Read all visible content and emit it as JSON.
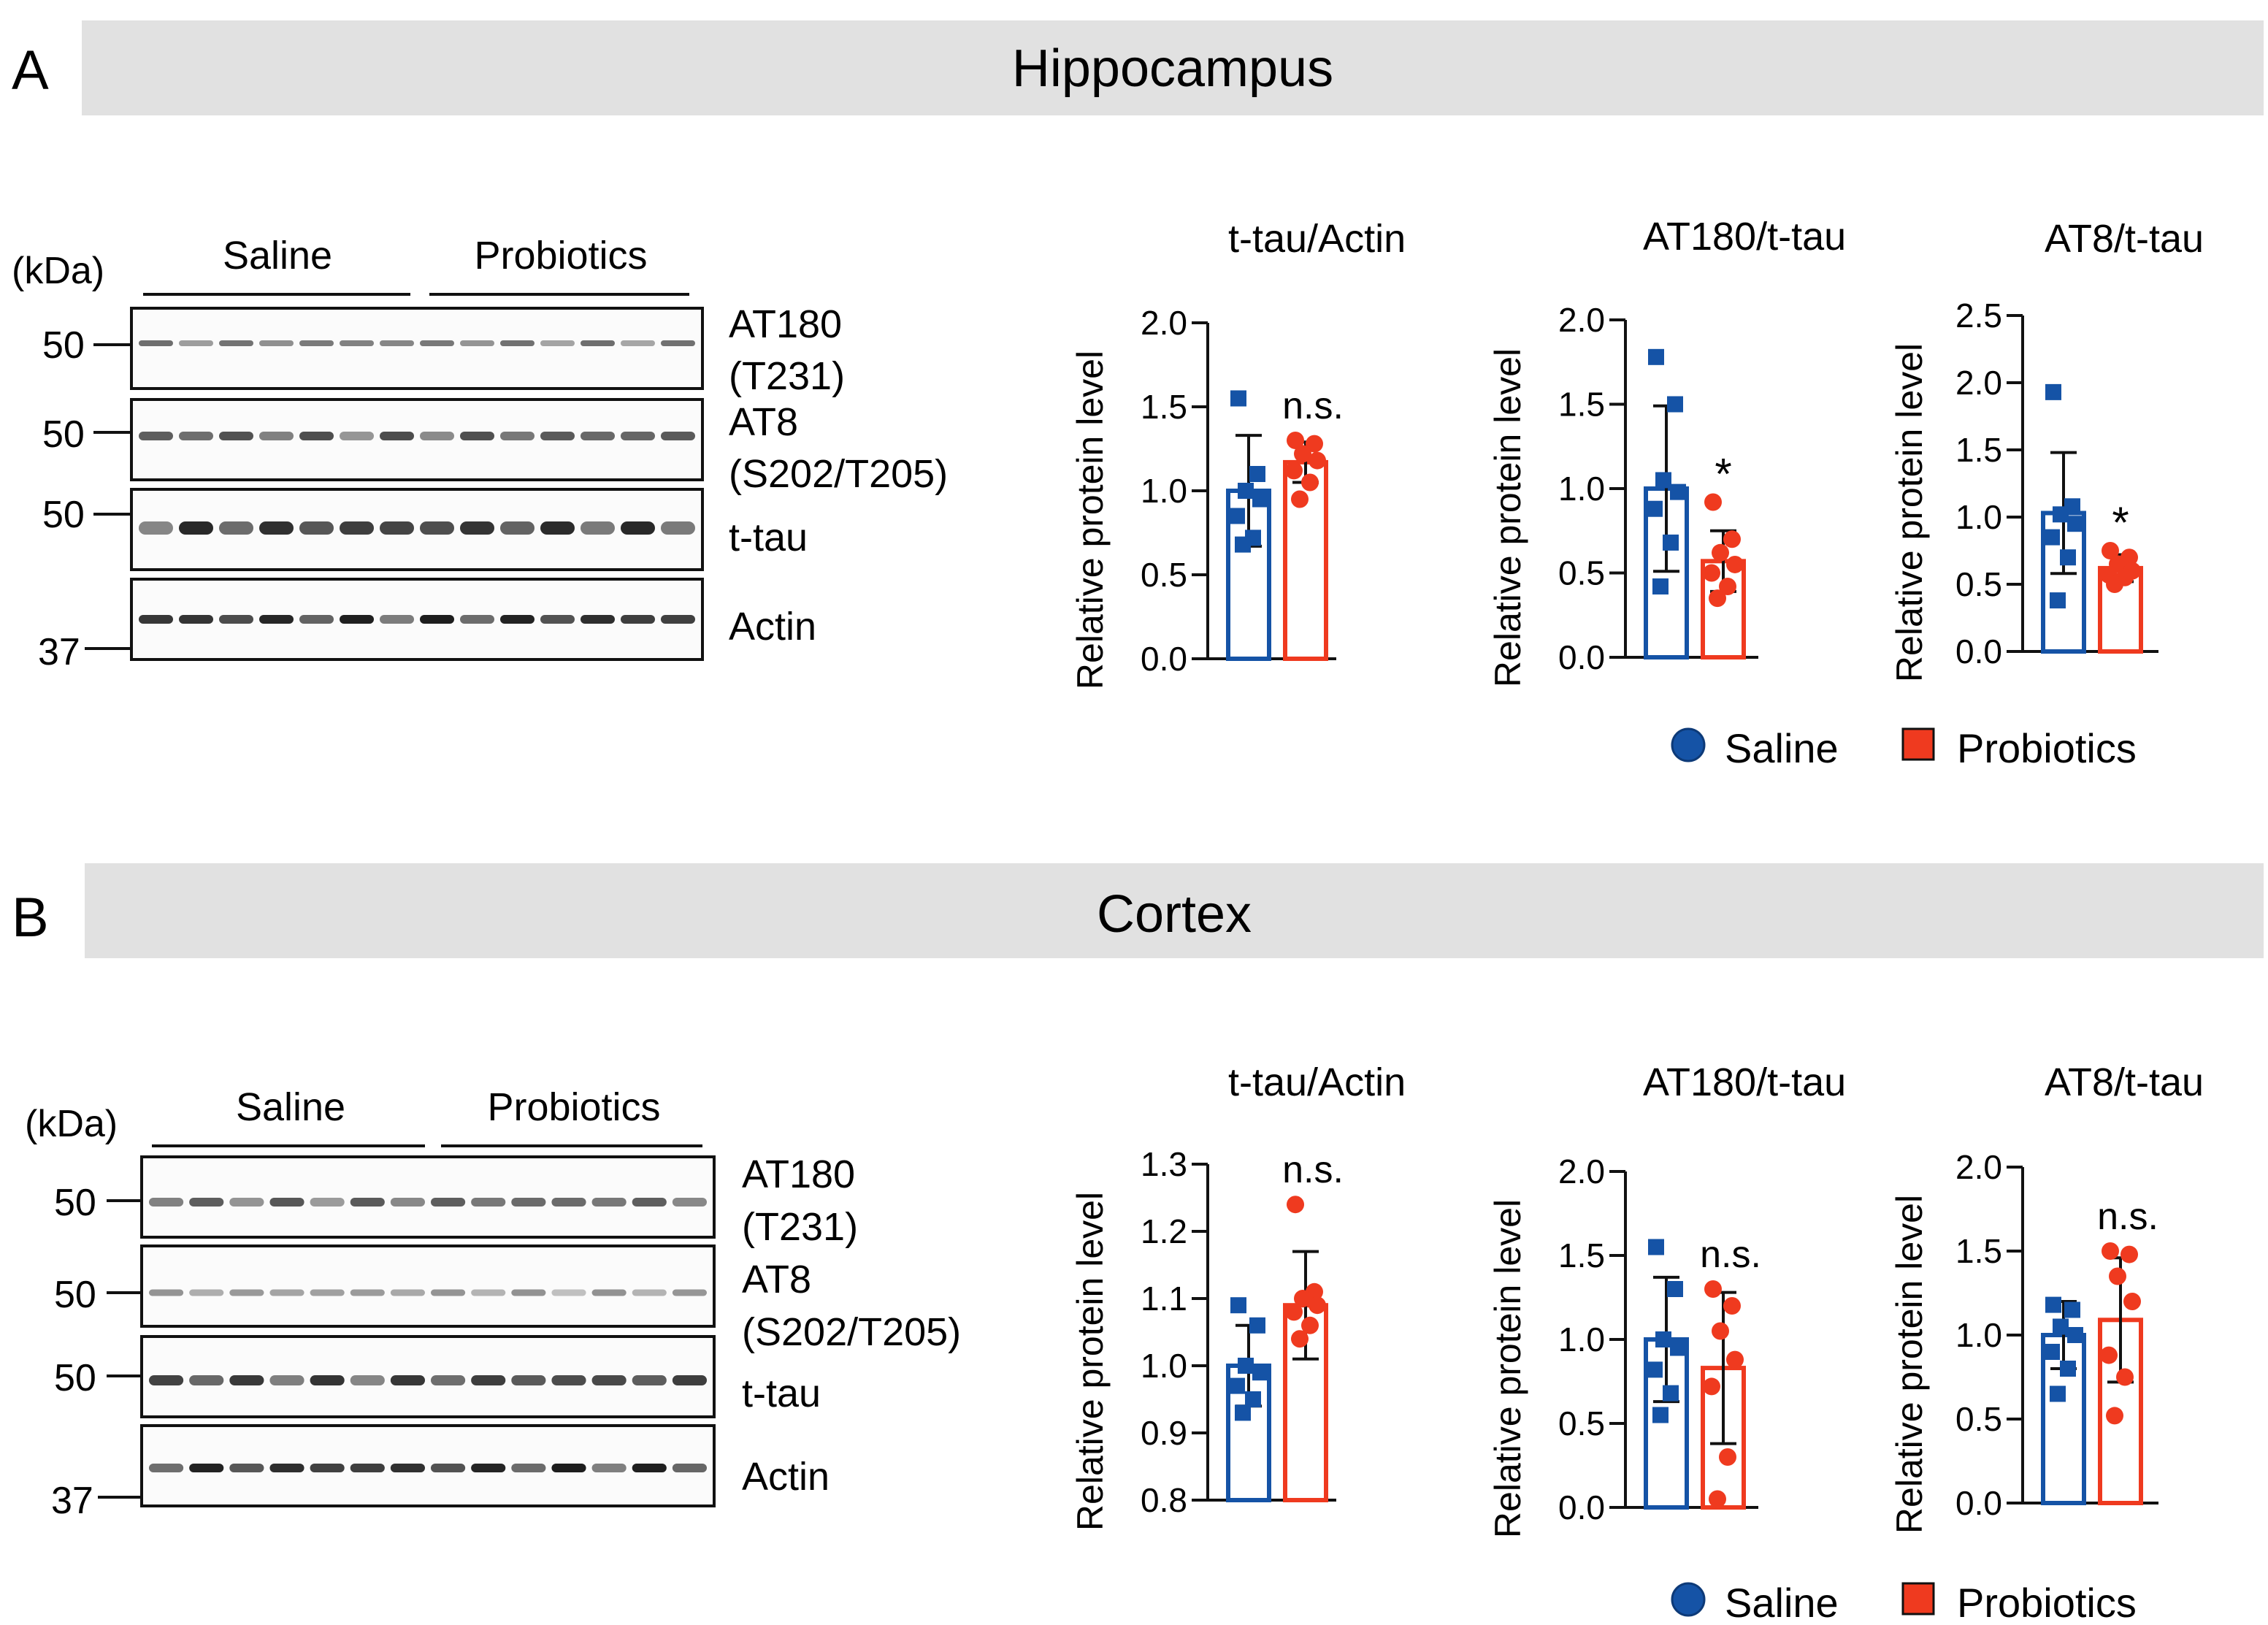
{
  "colors": {
    "saline": "#1553a6",
    "probiotics": "#ef3a1f",
    "banner": "#e1e1e1",
    "ink": "#111111"
  },
  "panels": [
    {
      "letter": "A",
      "region": "Hippocampus",
      "blot": {
        "kda_label": "(kDa)",
        "groups": [
          "Saline",
          "Probiotics"
        ],
        "markers": [
          "50",
          "50",
          "50",
          "37"
        ],
        "rows": [
          {
            "label_lines": [
              "AT180",
              "(T231)"
            ]
          },
          {
            "label_lines": [
              "AT8",
              "(S202/T205)"
            ]
          },
          {
            "label_lines": [
              "t-tau"
            ]
          },
          {
            "label_lines": [
              "Actin"
            ]
          }
        ]
      },
      "legend": {
        "items": [
          "Saline",
          "Probiotics"
        ]
      }
    },
    {
      "letter": "B",
      "region": "Cortex",
      "blot": {
        "kda_label": "(kDa)",
        "groups": [
          "Saline",
          "Probiotics"
        ],
        "markers": [
          "50",
          "50",
          "50",
          "37"
        ],
        "rows": [
          {
            "label_lines": [
              "AT180",
              "(T231)"
            ]
          },
          {
            "label_lines": [
              "AT8",
              "(S202/T205)"
            ]
          },
          {
            "label_lines": [
              "t-tau"
            ]
          },
          {
            "label_lines": [
              "Actin"
            ]
          }
        ]
      },
      "legend": {
        "items": [
          "Saline",
          "Probiotics"
        ]
      }
    }
  ],
  "chart_data": [
    {
      "panel": "A",
      "type": "bar",
      "title": "t-tau/Actin",
      "ylabel": "Relative protein level",
      "xlabel": "",
      "ylim": [
        0,
        2.0
      ],
      "yticks": [
        "0.0",
        "0.5",
        "1.0",
        "1.5",
        "2.0"
      ],
      "categories": [
        "Saline",
        "Probiotics"
      ],
      "values": [
        1.0,
        1.17
      ],
      "errors": [
        0.33,
        0.12
      ],
      "points": [
        [
          1.55,
          1.1,
          1.0,
          0.95,
          0.85,
          0.72,
          0.68
        ],
        [
          1.3,
          1.28,
          1.22,
          1.18,
          1.12,
          1.05,
          0.95
        ]
      ],
      "annotation": "n.s."
    },
    {
      "panel": "A",
      "type": "bar",
      "title": "AT180/t-tau",
      "ylabel": "Relative protein level",
      "xlabel": "",
      "ylim": [
        0,
        2.0
      ],
      "yticks": [
        "0.0",
        "0.5",
        "1.0",
        "1.5",
        "2.0"
      ],
      "categories": [
        "Saline",
        "Probiotics"
      ],
      "values": [
        1.0,
        0.57
      ],
      "errors": [
        0.49,
        0.18
      ],
      "points": [
        [
          1.78,
          1.5,
          1.05,
          0.98,
          0.88,
          0.68,
          0.42
        ],
        [
          0.92,
          0.7,
          0.62,
          0.55,
          0.5,
          0.42,
          0.35
        ]
      ],
      "annotation": "*"
    },
    {
      "panel": "A",
      "type": "bar",
      "title": "AT8/t-tau",
      "ylabel": "Relative protein level",
      "xlabel": "",
      "ylim": [
        0,
        2.5
      ],
      "yticks": [
        "0.0",
        "0.5",
        "1.0",
        "1.5",
        "2.0",
        "2.5"
      ],
      "categories": [
        "Saline",
        "Probiotics"
      ],
      "values": [
        1.03,
        0.62
      ],
      "errors": [
        0.45,
        0.1
      ],
      "points": [
        [
          1.93,
          1.08,
          1.02,
          0.95,
          0.85,
          0.7,
          0.38
        ],
        [
          0.75,
          0.7,
          0.65,
          0.6,
          0.57,
          0.55,
          0.5
        ]
      ],
      "annotation": "*"
    },
    {
      "panel": "B",
      "type": "bar",
      "title": "t-tau/Actin",
      "ylabel": "Relative protein level",
      "xlabel": "",
      "ylim": [
        0.8,
        1.3
      ],
      "yticks": [
        "0.8",
        "0.9",
        "1.0",
        "1.1",
        "1.2",
        "1.3"
      ],
      "categories": [
        "Saline",
        "Probiotics"
      ],
      "values": [
        1.0,
        1.09
      ],
      "errors": [
        0.06,
        0.08
      ],
      "points": [
        [
          1.09,
          1.06,
          1.0,
          0.99,
          0.97,
          0.95,
          0.93
        ],
        [
          1.24,
          1.11,
          1.1,
          1.09,
          1.08,
          1.06,
          1.04
        ]
      ],
      "annotation": "n.s."
    },
    {
      "panel": "B",
      "type": "bar",
      "title": "AT180/t-tau",
      "ylabel": "Relative protein level",
      "xlabel": "",
      "ylim": [
        0,
        2.0
      ],
      "yticks": [
        "0.0",
        "0.5",
        "1.0",
        "1.5",
        "2.0"
      ],
      "categories": [
        "Saline",
        "Probiotics"
      ],
      "values": [
        1.0,
        0.83
      ],
      "errors": [
        0.37,
        0.45
      ],
      "points": [
        [
          1.55,
          1.3,
          1.0,
          0.95,
          0.82,
          0.68,
          0.55
        ],
        [
          1.3,
          1.2,
          1.05,
          0.88,
          0.72,
          0.3,
          0.05
        ]
      ],
      "annotation": "n.s."
    },
    {
      "panel": "B",
      "type": "bar",
      "title": "AT8/t-tau",
      "ylabel": "Relative protein level",
      "xlabel": "",
      "ylim": [
        0,
        2.0
      ],
      "yticks": [
        "0.0",
        "0.5",
        "1.0",
        "1.5",
        "2.0"
      ],
      "categories": [
        "Saline",
        "Probiotics"
      ],
      "values": [
        1.0,
        1.09
      ],
      "errors": [
        0.2,
        0.37
      ],
      "points": [
        [
          1.18,
          1.15,
          1.05,
          1.0,
          0.9,
          0.8,
          0.65
        ],
        [
          1.5,
          1.48,
          1.35,
          1.2,
          0.88,
          0.75,
          0.52
        ]
      ],
      "annotation": "n.s."
    }
  ]
}
